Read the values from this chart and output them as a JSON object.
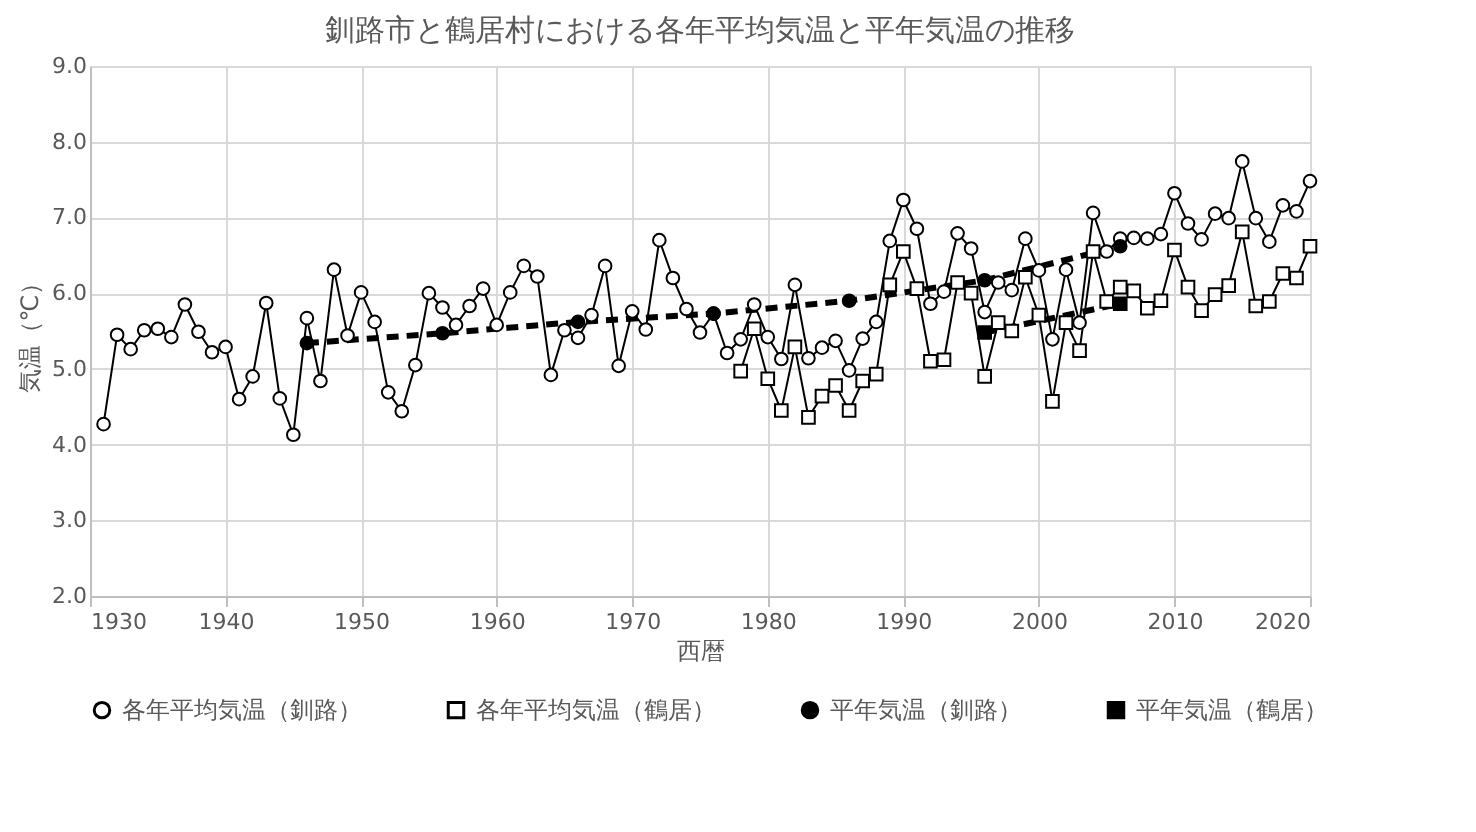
{
  "chart_data": {
    "type": "line",
    "title": "釧路市と鶴居村における各年平均気温と平年気温の推移",
    "xlabel": "西暦",
    "ylabel": "気温（℃）",
    "xlim": [
      1930,
      2020
    ],
    "xticks": [
      1930,
      1940,
      1950,
      1960,
      1970,
      1980,
      1990,
      2000,
      2010,
      2020
    ],
    "ylim": [
      2.0,
      9.0
    ],
    "yticks": [
      {
        "value": 2,
        "label": "2.0"
      },
      {
        "value": 3,
        "label": "3.0"
      },
      {
        "value": 4,
        "label": "4.0"
      },
      {
        "value": 5,
        "label": "5.0"
      },
      {
        "value": 6,
        "label": "6.0"
      },
      {
        "value": 7,
        "label": "7.0"
      },
      {
        "value": 8,
        "label": "8.0"
      },
      {
        "value": 9,
        "label": "9.0"
      }
    ],
    "grid": true,
    "legend": "bottom",
    "series": [
      {
        "name": "各年平均気温（釧路）",
        "color": "#000000",
        "marker": "circle",
        "line_style": "solid",
        "x": [
          1931,
          1932,
          1933,
          1934,
          1935,
          1936,
          1937,
          1938,
          1939,
          1940,
          1941,
          1942,
          1943,
          1944,
          1945,
          1946,
          1947,
          1948,
          1949,
          1950,
          1951,
          1952,
          1953,
          1954,
          1955,
          1956,
          1957,
          1958,
          1959,
          1960,
          1961,
          1962,
          1963,
          1964,
          1965,
          1966,
          1967,
          1968,
          1969,
          1970,
          1971,
          1972,
          1973,
          1974,
          1975,
          1976,
          1977,
          1978,
          1979,
          1980,
          1981,
          1982,
          1983,
          1984,
          1985,
          1986,
          1987,
          1988,
          1989,
          1990,
          1991,
          1992,
          1993,
          1994,
          1995,
          1996,
          1997,
          1998,
          1999,
          2000,
          2001,
          2002,
          2003,
          2004,
          2005,
          2006,
          2007,
          2008,
          2009,
          2010,
          2011,
          2012,
          2013,
          2014,
          2015,
          2016,
          2017,
          2018,
          2019,
          2020
        ],
        "values": [
          4.27,
          5.45,
          5.26,
          5.51,
          5.53,
          5.42,
          5.85,
          5.49,
          5.22,
          5.29,
          4.6,
          4.9,
          5.87,
          4.61,
          4.13,
          5.67,
          4.84,
          6.31,
          5.44,
          6.01,
          5.62,
          4.69,
          4.44,
          5.05,
          6.0,
          5.81,
          5.58,
          5.83,
          6.06,
          5.58,
          6.01,
          6.36,
          6.22,
          4.92,
          5.51,
          5.41,
          5.71,
          6.36,
          5.04,
          5.76,
          5.52,
          6.7,
          6.2,
          5.79,
          5.48,
          5.73,
          5.21,
          5.39,
          5.85,
          5.42,
          5.13,
          6.11,
          5.14,
          5.28,
          5.37,
          4.98,
          5.4,
          5.62,
          6.69,
          7.23,
          6.85,
          5.86,
          6.02,
          6.79,
          6.59,
          5.75,
          6.14,
          6.04,
          6.72,
          6.3,
          5.39,
          6.31,
          5.61,
          7.06,
          6.55,
          6.72,
          6.73,
          6.72,
          6.78,
          7.32,
          6.92,
          6.71,
          7.05,
          6.99,
          7.74,
          6.99,
          6.68,
          7.16,
          7.08,
          7.48
        ]
      },
      {
        "name": "各年平均気温（鶴居）",
        "color": "#000000",
        "marker": "square",
        "line_style": "solid",
        "x": [
          1978,
          1979,
          1980,
          1981,
          1982,
          1983,
          1984,
          1985,
          1986,
          1987,
          1988,
          1989,
          1990,
          1991,
          1992,
          1993,
          1994,
          1995,
          1996,
          1997,
          1998,
          1999,
          2000,
          2001,
          2002,
          2003,
          2004,
          2005,
          2006,
          2007,
          2008,
          2009,
          2010,
          2011,
          2012,
          2013,
          2014,
          2015,
          2016,
          2017,
          2018,
          2019,
          2020
        ],
        "values": [
          4.97,
          5.53,
          4.87,
          4.45,
          5.29,
          4.36,
          4.64,
          4.78,
          4.45,
          4.84,
          4.93,
          6.11,
          6.55,
          6.06,
          5.1,
          5.12,
          6.14,
          6.0,
          4.9,
          5.61,
          5.5,
          6.21,
          5.71,
          4.57,
          5.61,
          5.24,
          6.55,
          5.89,
          6.08,
          6.03,
          5.8,
          5.9,
          6.57,
          6.08,
          5.77,
          5.98,
          6.1,
          6.81,
          5.83,
          5.89,
          6.26,
          6.2,
          6.62
        ]
      },
      {
        "name": "平年気温（釧路）",
        "color": "#000000",
        "marker": "circle",
        "line_style": "dashed",
        "x": [
          1946,
          1956,
          1966,
          1976,
          1986,
          1996,
          2006
        ],
        "values": [
          5.34,
          5.47,
          5.62,
          5.73,
          5.9,
          6.17,
          6.62
        ]
      },
      {
        "name": "平年気温（鶴居）",
        "color": "#000000",
        "marker": "square",
        "line_style": "dashed",
        "x": [
          1996,
          2006
        ],
        "values": [
          5.48,
          5.86
        ]
      }
    ]
  }
}
